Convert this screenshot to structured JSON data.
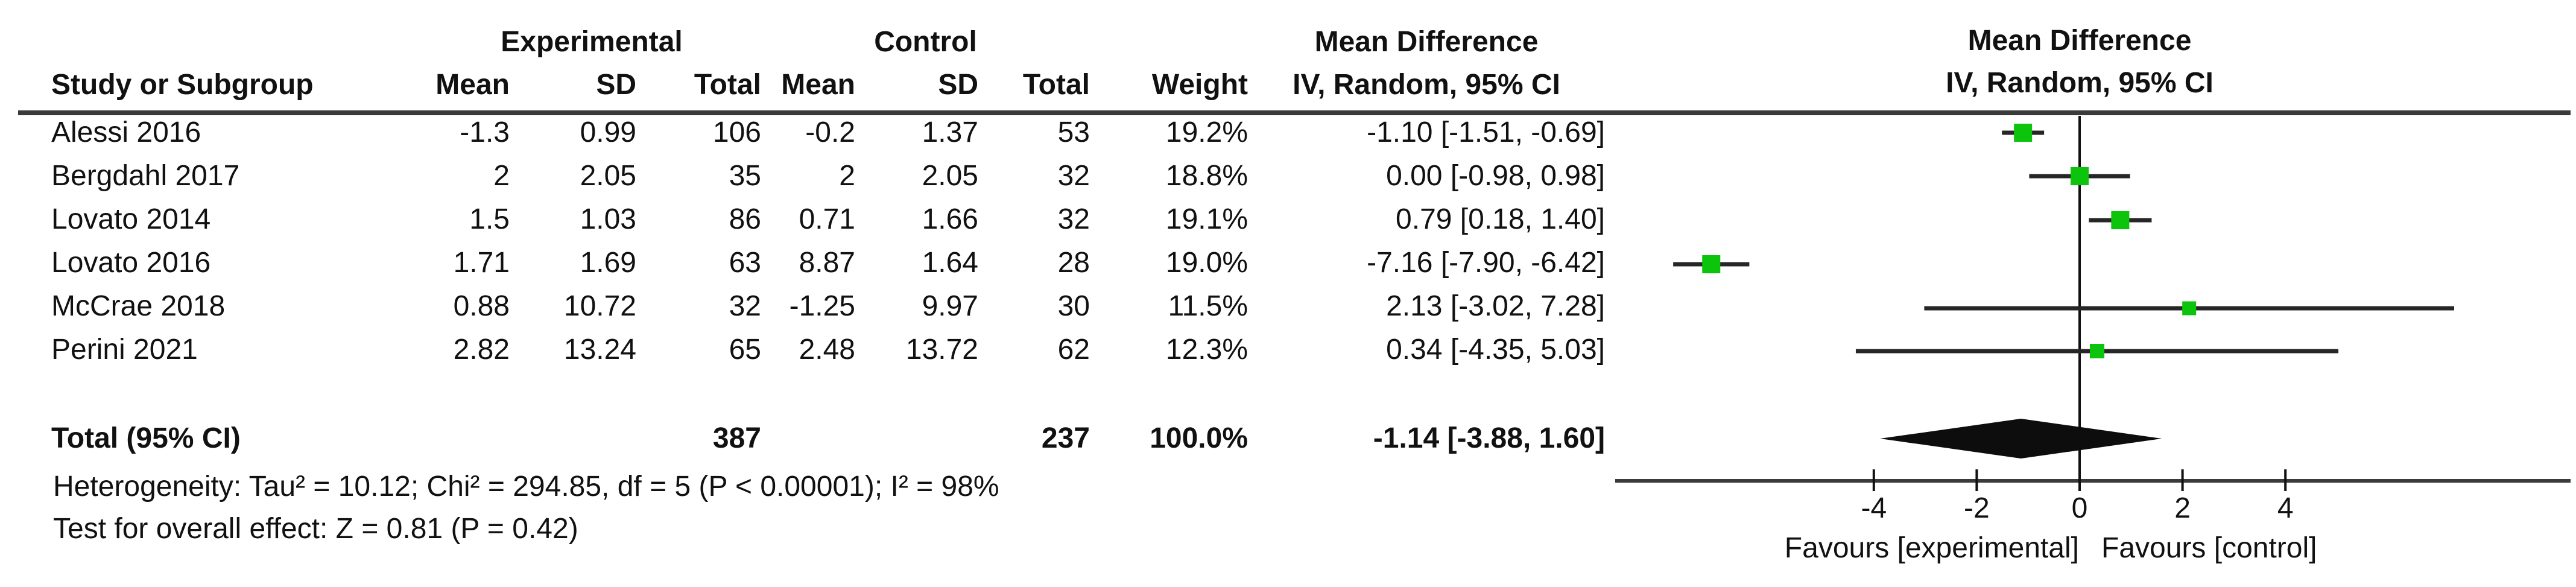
{
  "table": {
    "group_headers": {
      "experimental": "Experimental",
      "control": "Control",
      "mean_difference": "Mean Difference"
    },
    "columns": {
      "study": "Study or Subgroup",
      "mean_exp": "Mean",
      "sd_exp": "SD",
      "total_exp": "Total",
      "mean_ctrl": "Mean",
      "sd_ctrl": "SD",
      "total_ctrl": "Total",
      "weight": "Weight",
      "md_ci": "IV, Random, 95% CI"
    },
    "rows": [
      {
        "study": "Alessi 2016",
        "exp_mean": "-1.3",
        "exp_sd": "0.99",
        "exp_total": "106",
        "ctrl_mean": "-0.2",
        "ctrl_sd": "1.37",
        "ctrl_total": "53",
        "weight": "19.2%",
        "md_ci": "-1.10 [-1.51, -0.69]"
      },
      {
        "study": "Bergdahl 2017",
        "exp_mean": "2",
        "exp_sd": "2.05",
        "exp_total": "35",
        "ctrl_mean": "2",
        "ctrl_sd": "2.05",
        "ctrl_total": "32",
        "weight": "18.8%",
        "md_ci": "0.00 [-0.98, 0.98]"
      },
      {
        "study": "Lovato 2014",
        "exp_mean": "1.5",
        "exp_sd": "1.03",
        "exp_total": "86",
        "ctrl_mean": "0.71",
        "ctrl_sd": "1.66",
        "ctrl_total": "32",
        "weight": "19.1%",
        "md_ci": "0.79 [0.18, 1.40]"
      },
      {
        "study": "Lovato 2016",
        "exp_mean": "1.71",
        "exp_sd": "1.69",
        "exp_total": "63",
        "ctrl_mean": "8.87",
        "ctrl_sd": "1.64",
        "ctrl_total": "28",
        "weight": "19.0%",
        "md_ci": "-7.16 [-7.90, -6.42]"
      },
      {
        "study": "McCrae 2018",
        "exp_mean": "0.88",
        "exp_sd": "10.72",
        "exp_total": "32",
        "ctrl_mean": "-1.25",
        "ctrl_sd": "9.97",
        "ctrl_total": "30",
        "weight": "11.5%",
        "md_ci": "2.13 [-3.02, 7.28]"
      },
      {
        "study": "Perini 2021",
        "exp_mean": "2.82",
        "exp_sd": "13.24",
        "exp_total": "65",
        "ctrl_mean": "2.48",
        "ctrl_sd": "13.72",
        "ctrl_total": "62",
        "weight": "12.3%",
        "md_ci": "0.34 [-4.35, 5.03]"
      }
    ],
    "total": {
      "label": "Total (95% CI)",
      "exp_total": "387",
      "ctrl_total": "237",
      "weight": "100.0%",
      "md_ci": "-1.14 [-3.88, 1.60]"
    },
    "heterogeneity": "Heterogeneity: Tau² = 10.12; Chi² = 294.85, df = 5 (P < 0.00001); I² = 98%",
    "overall_effect": "Test for overall effect: Z = 0.81 (P = 0.42)"
  },
  "plot": {
    "header_line1": "Mean Difference",
    "header_line2": "IV, Random, 95% CI",
    "favours_left": "Favours [experimental]",
    "favours_right": "Favours [control]"
  },
  "chart_data": {
    "type": "forest",
    "effect_measure": "Mean Difference",
    "model": "IV, Random, 95% CI",
    "studies": [
      {
        "name": "Alessi 2016",
        "md": -1.1,
        "ci_low": -1.51,
        "ci_high": -0.69,
        "weight": 19.2
      },
      {
        "name": "Bergdahl 2017",
        "md": 0.0,
        "ci_low": -0.98,
        "ci_high": 0.98,
        "weight": 18.8
      },
      {
        "name": "Lovato 2014",
        "md": 0.79,
        "ci_low": 0.18,
        "ci_high": 1.4,
        "weight": 19.1
      },
      {
        "name": "Lovato 2016",
        "md": -7.16,
        "ci_low": -7.9,
        "ci_high": -6.42,
        "weight": 19.0
      },
      {
        "name": "McCrae 2018",
        "md": 2.13,
        "ci_low": -3.02,
        "ci_high": 7.28,
        "weight": 11.5
      },
      {
        "name": "Perini 2021",
        "md": 0.34,
        "ci_low": -4.35,
        "ci_high": 5.03,
        "weight": 12.3
      }
    ],
    "total": {
      "name": "Total (95% CI)",
      "md": -1.14,
      "ci_low": -3.88,
      "ci_high": 1.6,
      "weight": 100.0
    },
    "x_ticks": [
      -4,
      -2,
      0,
      2,
      4
    ],
    "xlim": [
      -9,
      9.5
    ],
    "favours_left": "Favours [experimental]",
    "favours_right": "Favours [control]",
    "marker_color": "#0bc40b",
    "ci_line_color": "#262626",
    "diamond_color": "#0d0d0d",
    "axis_color": "#3a3a3a",
    "zero_line_color": "#111111"
  }
}
